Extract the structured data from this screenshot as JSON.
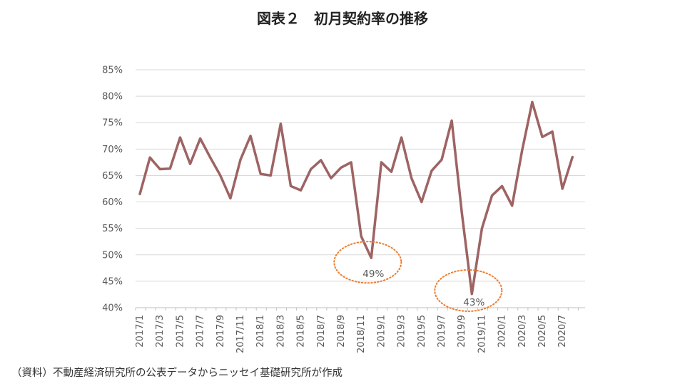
{
  "title": "図表２　初月契約率の推移",
  "source": "（資料）不動産経済研究所の公表データからニッセイ基礎研究所が作成",
  "chart_data": {
    "type": "line",
    "title": "図表２　初月契約率の推移",
    "xlabel": "",
    "ylabel": "",
    "ylim": [
      40,
      85
    ],
    "y_tick_labels": [
      "40%",
      "45%",
      "50%",
      "55%",
      "60%",
      "65%",
      "70%",
      "75%",
      "80%",
      "85%"
    ],
    "x": [
      "2017/1",
      "2017/2",
      "2017/3",
      "2017/4",
      "2017/5",
      "2017/6",
      "2017/7",
      "2017/8",
      "2017/9",
      "2017/10",
      "2017/11",
      "2017/12",
      "2018/1",
      "2018/2",
      "2018/3",
      "2018/4",
      "2018/5",
      "2018/6",
      "2018/7",
      "2018/8",
      "2018/9",
      "2018/10",
      "2018/11",
      "2018/12",
      "2019/1",
      "2019/2",
      "2019/3",
      "2019/4",
      "2019/5",
      "2019/6",
      "2019/7",
      "2019/8",
      "2019/9",
      "2019/10",
      "2019/11",
      "2019/12",
      "2020/1",
      "2020/2",
      "2020/3",
      "2020/4",
      "2020/5",
      "2020/6",
      "2020/7",
      "2020/8"
    ],
    "x_tick_labels": [
      "2017/1",
      "2017/3",
      "2017/5",
      "2017/7",
      "2017/9",
      "2017/11",
      "2018/1",
      "2018/3",
      "2018/5",
      "2018/7",
      "2018/9",
      "2018/11",
      "2019/1",
      "2019/3",
      "2019/5",
      "2019/7",
      "2019/9",
      "2019/11",
      "2020/1",
      "2020/3",
      "2020/5",
      "2020/7"
    ],
    "series": [
      {
        "color": "#9e6363",
        "values": [
          61.5,
          68.4,
          66.2,
          66.3,
          72.2,
          67.2,
          72.0,
          68.4,
          65.0,
          60.7,
          68.0,
          72.5,
          65.3,
          65.0,
          74.8,
          63.0,
          62.2,
          66.2,
          67.9,
          64.5,
          66.5,
          67.5,
          53.5,
          49.4,
          67.5,
          65.7,
          72.2,
          64.5,
          60.0,
          65.9,
          68.0,
          75.4,
          58.0,
          42.6,
          55.0,
          61.2,
          63.0,
          59.3,
          69.8,
          78.9,
          72.3,
          73.3,
          62.5,
          68.5
        ]
      }
    ],
    "grid": true,
    "annotations": [
      {
        "text": "49%",
        "x": "2018/12",
        "y": 49.4,
        "style": "dotted-ellipse",
        "color": "#ed7d31"
      },
      {
        "text": "43%",
        "x": "2019/10",
        "y": 42.6,
        "style": "dotted-ellipse",
        "color": "#ed7d31"
      }
    ]
  }
}
